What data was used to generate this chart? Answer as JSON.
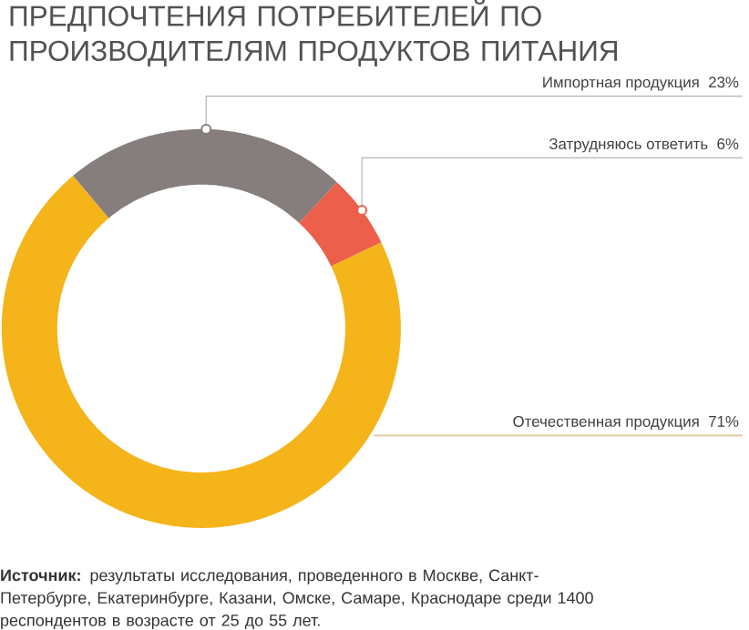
{
  "chart_data": {
    "type": "donut",
    "title": "ПРЕДПОЧТЕНИЯ ПОТРЕБИТЕЛЕЙ ПО ПРОИЗВОДИТЕЛЯМ ПРОДУКТОВ ПИТАНИЯ",
    "categories": [
      "Импортная продукция",
      "Затрудняюсь ответить",
      "Отечественная продукция"
    ],
    "values": [
      23,
      6,
      71
    ],
    "colors": [
      "#867d7d",
      "#ec5f4a",
      "#f4b41a"
    ],
    "value_labels": [
      "23%",
      "6%",
      "71%"
    ],
    "annotations": [
      "**Источник:** результаты исследования, проведенного в Москве, Санкт-Петербурге, Екатеринбурге, Казани, Омске, Самаре, Краснодаре среди 1400 респондентов в возрасте от 25 до 55 лет."
    ]
  }
}
